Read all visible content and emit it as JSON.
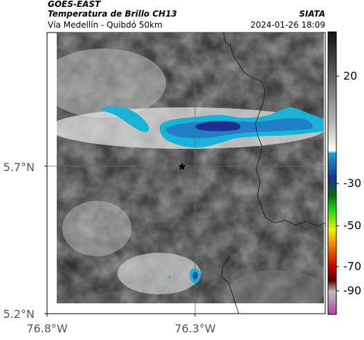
{
  "header": {
    "satellite": "GOES-EAST",
    "product": "Temperatura de Brillo CH13",
    "route": "Vía Medellín - Quibdó 50km",
    "organization": "SIATA",
    "datetime": "2024-01-26 18:09"
  },
  "map": {
    "lat_labels": [
      "5.7°N",
      "5.2°N"
    ],
    "lon_labels": [
      "76.8°W",
      "76.3°W"
    ],
    "marker_icon": "star-icon"
  },
  "colorbar": {
    "ticks": [
      "20",
      "-30",
      "-50",
      "-70",
      "-90"
    ],
    "colors": {
      "black": "#1a1a1a",
      "white": "#ffffff",
      "cyan": "#19b3d8",
      "blue": "#1f2f8f",
      "green": "#1ad61a",
      "yellow": "#f0f000",
      "orange": "#f07800",
      "red": "#c80000",
      "darkred": "#5a0000",
      "magenta": "#b040b0"
    }
  }
}
